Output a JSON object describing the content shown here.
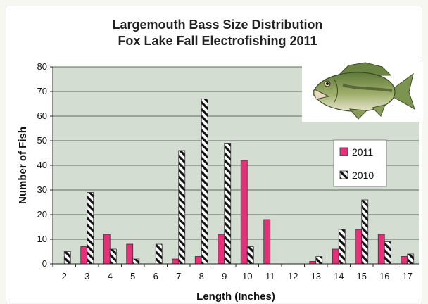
{
  "chart_data": {
    "type": "bar",
    "title": [
      "Largemouth Bass Size Distribution",
      "Fox Lake Fall Electrofishing 2011"
    ],
    "xlabel": "Length (Inches)",
    "ylabel": "Number of Fish",
    "ylim": [
      0,
      80
    ],
    "yticks": [
      0,
      10,
      20,
      30,
      40,
      50,
      60,
      70,
      80
    ],
    "grid": true,
    "legend": "right",
    "categories": [
      "2",
      "3",
      "4",
      "5",
      "6",
      "7",
      "8",
      "9",
      "10",
      "11",
      "12",
      "13",
      "14",
      "15",
      "16",
      "17"
    ],
    "series": [
      {
        "name": "2011",
        "color": "#e6317a",
        "pattern": "solid",
        "values": [
          0,
          7,
          12,
          8,
          0,
          2,
          3,
          12,
          42,
          18,
          0,
          1,
          6,
          14,
          12,
          3
        ]
      },
      {
        "name": "2010",
        "color": "#111111",
        "pattern": "diagonal-hatch",
        "values": [
          5,
          29,
          6,
          2,
          8,
          46,
          67,
          49,
          7,
          0,
          0,
          3,
          14,
          26,
          9,
          4
        ]
      }
    ]
  },
  "decoration": {
    "image": "largemouth-bass-fish-icon"
  },
  "colors": {
    "plot_background": "#d4ddd2",
    "gridline": "#5a6b5a"
  }
}
